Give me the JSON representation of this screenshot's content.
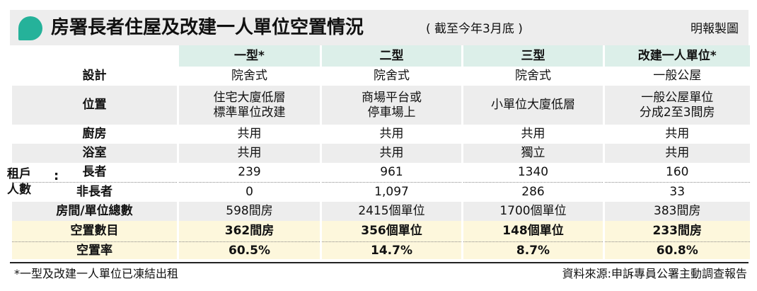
{
  "header": {
    "title": "房署長者住屋及改建一人單位空置情況",
    "subtitle": "( 截至今年3月底 )",
    "credit": "明報製圖"
  },
  "columns": [
    "一型*",
    "二型",
    "三型",
    "改建一人單位*"
  ],
  "rows": {
    "design": {
      "label": "設計",
      "cells": [
        "院舍式",
        "院舍式",
        "院舍式",
        "一般公屋"
      ]
    },
    "location": {
      "label": "位置",
      "cells": [
        "住宅大廈低層\n標準單位改建",
        "商場平台或\n停車場上",
        "小單位大廈低層",
        "一般公屋單位\n分成2至3間房"
      ]
    },
    "kitchen": {
      "label": "廚房",
      "cells": [
        "共用",
        "共用",
        "共用",
        "共用"
      ]
    },
    "bathroom": {
      "label": "浴室",
      "cells": [
        "共用",
        "共用",
        "獨立",
        "共用"
      ]
    },
    "tenants_group_label": "租戶\n人數",
    "tenants_group_colon": ":",
    "elderly": {
      "label": "長者",
      "cells": [
        "239",
        "961",
        "1340",
        "160"
      ]
    },
    "non_elderly": {
      "label": "非長者",
      "cells": [
        "0",
        "1,097",
        "286",
        "33"
      ]
    },
    "total": {
      "label": "房間/單位總數",
      "cells": [
        "598間房",
        "2415個單位",
        "1700個單位",
        "383間房"
      ]
    },
    "vacant": {
      "label": "空置數目",
      "cells": [
        "362間房",
        "356個單位",
        "148個單位",
        "233間房"
      ]
    },
    "rate": {
      "label": "空置率",
      "cells": [
        "60.5%",
        "14.7%",
        "8.7%",
        "60.8%"
      ]
    }
  },
  "footnote": "*一型及改建一人單位已凍結出租",
  "source": "資料來源:申訴專員公署主動調查報告"
}
